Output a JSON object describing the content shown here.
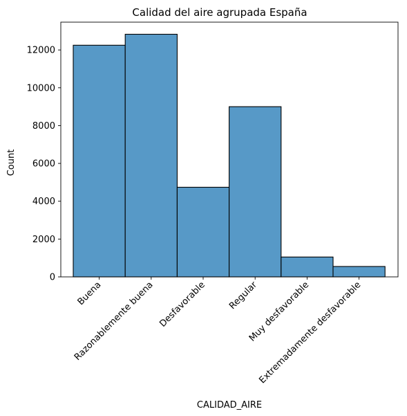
{
  "chart_data": {
    "type": "bar",
    "title": "Calidad del aire agrupada España",
    "xlabel": "CALIDAD_AIRE",
    "ylabel": "Count",
    "categories": [
      "Buena",
      "Razonablemente buena",
      "Desfavorable",
      "Regular",
      "Muy desfavorable",
      "Extremadamente desfavorable"
    ],
    "values": [
      12250,
      12830,
      4740,
      9000,
      1050,
      550
    ],
    "yticks": [
      0,
      2000,
      4000,
      6000,
      8000,
      10000,
      12000
    ],
    "ytick_labels": [
      "0",
      "2000",
      "4000",
      "6000",
      "8000",
      "10000",
      "12000"
    ],
    "ylim": [
      0,
      13470
    ],
    "grid": false,
    "bar_color": "#5799c7",
    "bar_edge_color": "#000000"
  }
}
